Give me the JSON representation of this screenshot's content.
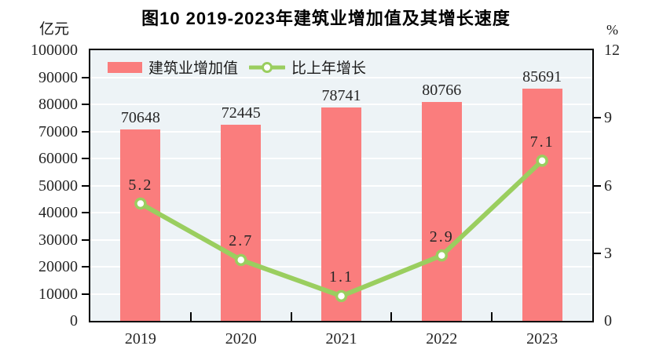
{
  "title": "图10  2019-2023年建筑业增加值及其增长速度",
  "left_axis_unit": "亿元",
  "right_axis_unit": "%",
  "legend": {
    "bar_label": "建筑业增加值",
    "line_label": "比上年增长"
  },
  "chart_data": {
    "type": "bar",
    "combo": "bar+line",
    "title": "图10  2019-2023年建筑业增加值及其增长速度",
    "categories": [
      "2019",
      "2020",
      "2021",
      "2022",
      "2023"
    ],
    "series": [
      {
        "name": "建筑业增加值",
        "type": "bar",
        "axis": "left",
        "values": [
          70648,
          72445,
          78741,
          80766,
          85691
        ]
      },
      {
        "name": "比上年增长",
        "type": "line",
        "axis": "right",
        "values": [
          5.2,
          2.7,
          1.1,
          2.9,
          7.1
        ]
      }
    ],
    "left_axis": {
      "label": "亿元",
      "min": 0,
      "max": 100000,
      "tick_step": 10000,
      "ticks": [
        0,
        10000,
        20000,
        30000,
        40000,
        50000,
        60000,
        70000,
        80000,
        90000,
        100000
      ]
    },
    "right_axis": {
      "label": "%",
      "min": 0,
      "max": 12,
      "tick_step": 3,
      "ticks": [
        0,
        3,
        6,
        9,
        12
      ]
    },
    "grid": true,
    "legend_position": "top-left-inside",
    "colors": {
      "bar": "#FA7D7D",
      "line": "#9ACE5F",
      "marker_fill": "#FFFFFF",
      "plot_bg": "#EDF3F6",
      "gridline": "#FFFFFF",
      "axis": "#000000",
      "text": "#262626"
    }
  }
}
